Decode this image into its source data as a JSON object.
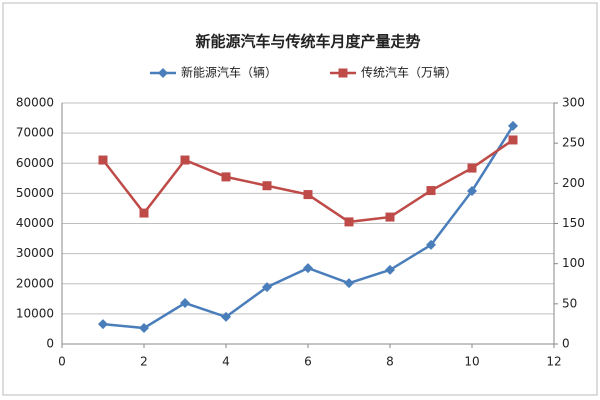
{
  "chart_data": {
    "type": "line",
    "title": "新能源汽车与传统车月度产量走势",
    "x": [
      1,
      2,
      3,
      4,
      5,
      6,
      7,
      8,
      9,
      10,
      11
    ],
    "series": [
      {
        "name": "新能源汽车（辆）",
        "color": "#4a7ebb",
        "marker": "diamond",
        "values": [
          6600,
          5300,
          13600,
          9000,
          18900,
          25200,
          20200,
          24600,
          32900,
          50800,
          72400
        ]
      },
      {
        "name": "传统汽车（万辆）",
        "color": "#be4b48",
        "marker": "square",
        "axis": "y2",
        "values": [
          229,
          163,
          229,
          208,
          197,
          186,
          152,
          158,
          191,
          219,
          254
        ]
      }
    ],
    "xlim": [
      0,
      12
    ],
    "xticks": [
      0,
      2,
      4,
      6,
      8,
      10,
      12
    ],
    "ylim": [
      0,
      80000
    ],
    "yticks": [
      0,
      10000,
      20000,
      30000,
      40000,
      50000,
      60000,
      70000,
      80000
    ],
    "y2lim": [
      0,
      300
    ],
    "y2ticks": [
      0,
      50,
      100,
      150,
      200,
      250,
      300
    ],
    "grid": true,
    "legend": "top"
  }
}
